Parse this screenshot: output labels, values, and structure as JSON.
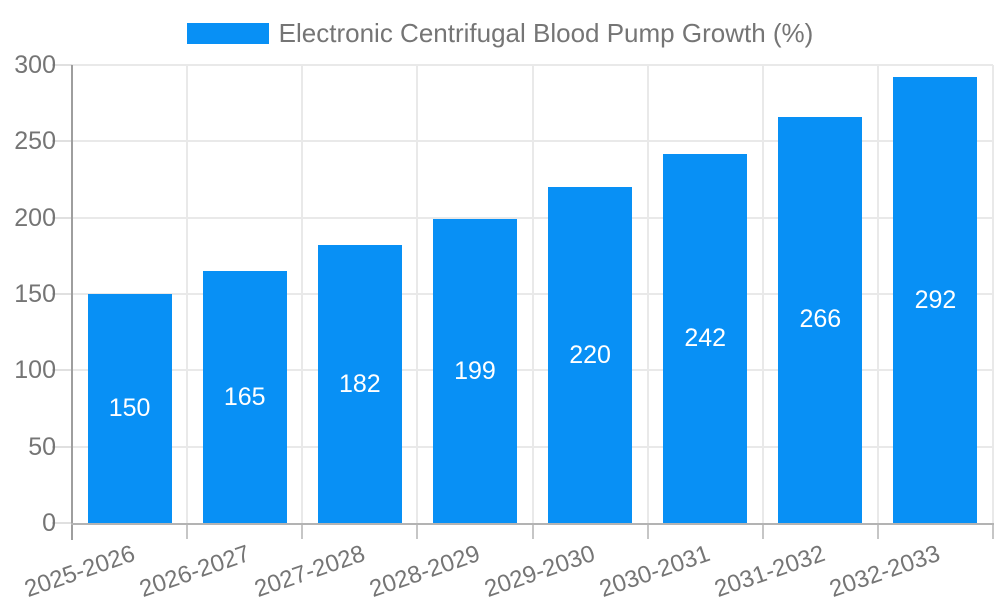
{
  "legend": {
    "swatch_color": "#0890F5",
    "label": "Electronic Centrifugal Blood Pump Growth (%)"
  },
  "chart_data": {
    "type": "bar",
    "title": "Electronic Centrifugal Blood Pump Growth (%)",
    "categories": [
      "2025-2026",
      "2026-2027",
      "2027-2028",
      "2028-2029",
      "2029-2030",
      "2030-2031",
      "2031-2032",
      "2032-2033"
    ],
    "values": [
      150,
      165,
      182,
      199,
      220,
      242,
      266,
      292
    ],
    "xlabel": "",
    "ylabel": "",
    "ylim": [
      0,
      300
    ],
    "yticks": [
      0,
      50,
      100,
      150,
      200,
      250,
      300
    ],
    "grid": true,
    "legend_position": "top-center",
    "value_label_position": "inside-center",
    "x_label_rotation_deg": -19,
    "colors": {
      "bar": "#0890F5",
      "axis_text": "#757575",
      "legend_text": "#757575",
      "value_label_text": "#ffffff",
      "gridline": "#e9e9e9",
      "y_axis_line": "#9e9e9e",
      "x_axis_line": "#b3b3b3",
      "y_tick": "#e0e0e0",
      "x_tick": "#c6c6c6",
      "background": "#ffffff"
    }
  }
}
